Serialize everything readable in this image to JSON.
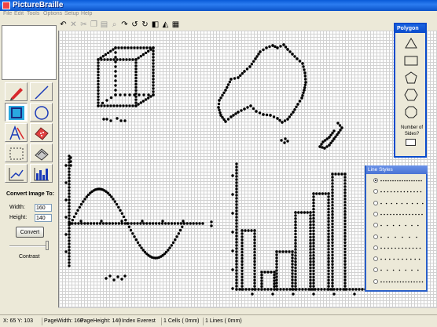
{
  "window": {
    "title": "PictureBraille"
  },
  "menu": [
    "File",
    "Edit",
    "Tools",
    "Options",
    "Setup",
    "Help"
  ],
  "toolbar": {
    "icons": [
      "undo",
      "cut",
      "scissors",
      "copy",
      "paste",
      "find",
      "redo",
      "rotate-left",
      "rotate-right",
      "flip-horizontal",
      "flip-vertical",
      "grid"
    ]
  },
  "tools": [
    "pencil",
    "line",
    "rectangle",
    "circle",
    "text-a",
    "eraser",
    "selection",
    "fill",
    "graph-line",
    "bar-chart"
  ],
  "convert": {
    "title": "Convert Image To:",
    "width_label": "Width:",
    "width_value": "160",
    "height_label": "Height:",
    "height_value": "140",
    "convert_label": "Convert",
    "contrast_label": "Contrast"
  },
  "polygon_panel": {
    "title": "Polygon",
    "shapes": [
      "triangle",
      "rectangle",
      "pentagon",
      "hexagon",
      "octagon"
    ],
    "sides_label": "Number of Sides?"
  },
  "line_styles_panel": {
    "title": "Line Styles",
    "selected_index": 0,
    "styles": 10
  },
  "status": {
    "coords": "X: 65 Y: 103",
    "page_width": "PageWidth:  160",
    "page_height": "PageHeight:  140",
    "device": "Index Everest",
    "cells": "1 Cells ( 0mm)",
    "lines": "1 Lines ( 0mm)"
  },
  "colors": {
    "title_bar": "#0a5bd8",
    "tool_selected": "#29a8e0",
    "dot": "#000000"
  }
}
